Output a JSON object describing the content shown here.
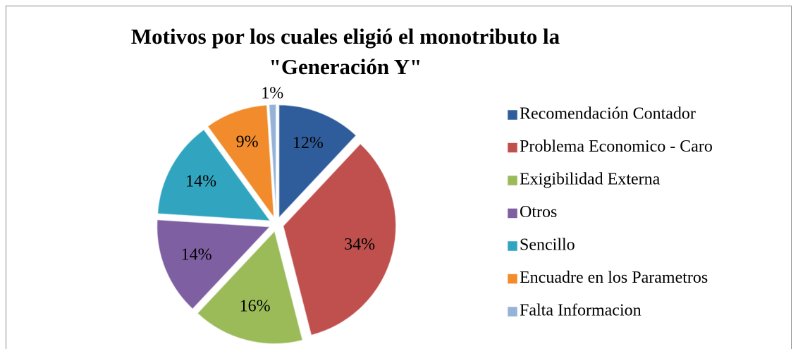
{
  "chart_data": {
    "type": "pie",
    "title": "Motivos por los cuales eligió el monotributo la \"Generación Y\"",
    "categories": [
      "Recomendación Contador",
      "Problema Economico - Caro",
      "Exigibilidad Externa",
      "Otros",
      "Sencillo",
      "Encuadre en los Parametros",
      "Falta Informacion"
    ],
    "values": [
      12,
      34,
      16,
      14,
      14,
      9,
      1
    ],
    "value_labels": [
      "12%",
      "34%",
      "16%",
      "14%",
      "14%",
      "9%",
      "1%"
    ],
    "colors": [
      "#2F5D9C",
      "#C0504D",
      "#9BBB59",
      "#7E5FA2",
      "#31A5C0",
      "#F18B2B",
      "#95B3D7"
    ],
    "legend": "right"
  }
}
